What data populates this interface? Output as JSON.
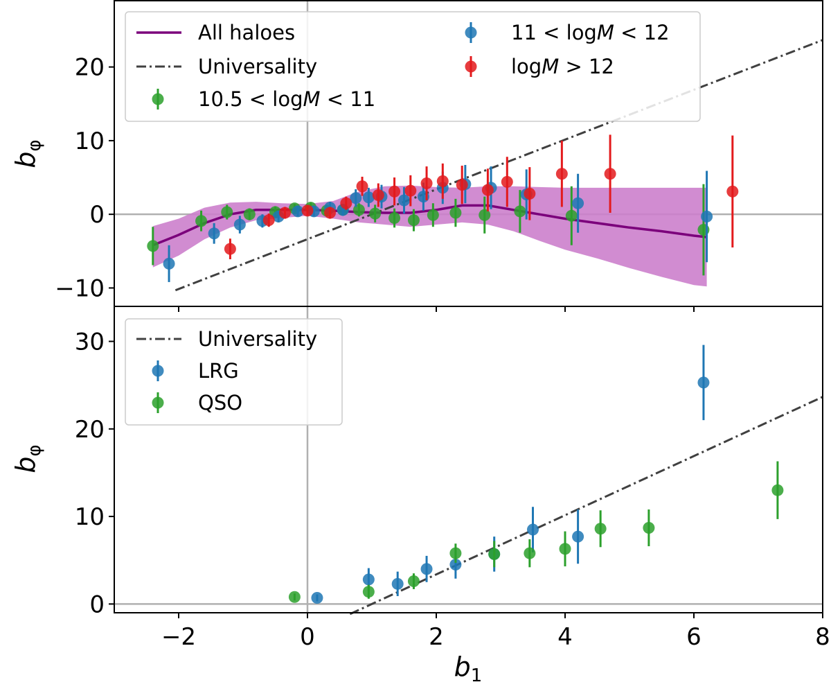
{
  "chart_data": [
    {
      "type": "scatter",
      "panel": "top",
      "xlabel": "b1",
      "ylabel": "bφ",
      "xlim": [
        -3,
        8
      ],
      "ylim": [
        -12.5,
        29
      ],
      "yticks": [
        -10,
        0,
        10,
        20
      ],
      "ytick_labels": [
        "−10",
        "0",
        "10",
        "20"
      ],
      "legend_position": "top-left",
      "reference_lines": {
        "vertical_x": 0,
        "horizontal_y": 0,
        "color": "#b0b0b0"
      },
      "universality": {
        "label": "Universality",
        "slope": 3.38,
        "intercept": -3.38,
        "x_range": [
          -2.05,
          8
        ],
        "color": "#404040"
      },
      "all_haloes": {
        "label": "All haloes",
        "color": "#7b007b",
        "band_color": "#cc80cc",
        "x": [
          -2.4,
          -2.0,
          -1.6,
          -1.2,
          -0.8,
          -0.4,
          0.0,
          0.4,
          0.8,
          1.2,
          1.6,
          2.0,
          2.4,
          2.8,
          3.2,
          3.6,
          4.0,
          4.5,
          5.0,
          5.5,
          6.0,
          6.2
        ],
        "y": [
          -4.2,
          -2.8,
          -1.2,
          0.0,
          0.6,
          0.6,
          0.6,
          0.5,
          0.3,
          0.2,
          0.2,
          0.6,
          1.2,
          1.2,
          0.6,
          0.0,
          -0.6,
          -1.2,
          -1.8,
          -2.3,
          -2.9,
          -3.1
        ],
        "lower": [
          -7.2,
          -5.6,
          -3.4,
          -1.8,
          -0.8,
          -0.5,
          -0.2,
          -0.6,
          -1.1,
          -1.4,
          -1.7,
          -1.4,
          -1.1,
          -1.4,
          -2.3,
          -3.6,
          -4.8,
          -6.0,
          -7.3,
          -8.5,
          -9.6,
          -9.8
        ],
        "upper": [
          -1.6,
          -0.6,
          0.9,
          1.6,
          1.7,
          1.5,
          1.4,
          1.8,
          3.1,
          3.8,
          3.9,
          3.7,
          3.6,
          3.8,
          3.8,
          3.7,
          3.6,
          3.6,
          3.6,
          3.6,
          3.6,
          3.6
        ]
      },
      "series": [
        {
          "name": "10.5 < logM < 11",
          "color": "#2ca02c",
          "x": [
            -2.4,
            -1.65,
            -1.25,
            -0.9,
            -0.5,
            -0.2,
            0.05,
            0.3,
            0.55,
            0.8,
            1.05,
            1.35,
            1.65,
            1.95,
            2.3,
            2.75,
            3.3,
            4.1,
            6.15
          ],
          "y": [
            -4.3,
            -0.9,
            0.3,
            0.0,
            0.3,
            0.8,
            0.9,
            0.5,
            0.6,
            0.6,
            0.1,
            -0.5,
            -0.8,
            -0.1,
            0.2,
            -0.1,
            0.4,
            -0.2,
            -2.1
          ],
          "err": [
            2.6,
            1.4,
            1.0,
            0.8,
            0.8,
            0.6,
            0.7,
            0.8,
            0.7,
            0.9,
            1.2,
            1.3,
            1.5,
            1.6,
            1.9,
            2.5,
            2.9,
            4.0,
            6.2
          ]
        },
        {
          "name": "11 < logM < 12",
          "color": "#1f77b4",
          "x": [
            -2.15,
            -1.45,
            -1.05,
            -0.7,
            -0.45,
            -0.15,
            0.1,
            0.35,
            0.55,
            0.75,
            0.95,
            1.15,
            1.5,
            1.8,
            2.1,
            2.45,
            2.85,
            3.4,
            4.2,
            6.2
          ],
          "y": [
            -6.7,
            -2.6,
            -1.4,
            -0.9,
            -0.3,
            0.4,
            0.4,
            0.9,
            0.6,
            2.2,
            2.3,
            2.4,
            1.9,
            2.4,
            3.6,
            4.1,
            3.6,
            2.7,
            1.5,
            -0.3
          ],
          "err": [
            2.5,
            1.4,
            1.2,
            0.9,
            0.8,
            0.7,
            0.7,
            0.8,
            0.8,
            1.2,
            1.3,
            1.6,
            1.8,
            1.9,
            2.2,
            2.6,
            2.9,
            3.4,
            4.0,
            6.2
          ]
        },
        {
          "name": "logM > 12",
          "color": "#e31a1c",
          "x": [
            -1.2,
            -0.6,
            -0.35,
            0.0,
            0.35,
            0.6,
            0.85,
            1.1,
            1.35,
            1.6,
            1.85,
            2.1,
            2.4,
            2.8,
            3.1,
            3.45,
            3.95,
            4.7,
            6.6
          ],
          "y": [
            -4.7,
            -0.8,
            0.2,
            0.5,
            0.2,
            1.5,
            3.8,
            2.6,
            3.1,
            3.2,
            4.2,
            4.5,
            4.0,
            3.3,
            4.4,
            2.8,
            5.5,
            5.5,
            3.1
          ],
          "err": [
            1.4,
            0.9,
            0.8,
            0.7,
            0.8,
            0.9,
            1.3,
            1.6,
            1.9,
            2.1,
            2.3,
            2.4,
            2.6,
            2.9,
            3.4,
            3.6,
            4.5,
            5.3,
            7.6
          ]
        }
      ]
    },
    {
      "type": "scatter",
      "panel": "bottom",
      "xlabel": "b1",
      "ylabel": "bφ",
      "xlim": [
        -3,
        8
      ],
      "ylim": [
        -1,
        34
      ],
      "yticks": [
        0,
        10,
        20,
        30
      ],
      "ytick_labels": [
        "0",
        "10",
        "20",
        "30"
      ],
      "xticks": [
        -2,
        0,
        2,
        4,
        6,
        8
      ],
      "xtick_labels": [
        "−2",
        "0",
        "2",
        "4",
        "6",
        "8"
      ],
      "legend_position": "top-left",
      "reference_lines": {
        "vertical_x": 0,
        "horizontal_y": 0,
        "color": "#b0b0b0"
      },
      "universality": {
        "label": "Universality",
        "slope": 3.38,
        "intercept": -3.38,
        "x_range": [
          0.66,
          8
        ],
        "color": "#404040"
      },
      "series": [
        {
          "name": "LRG",
          "color": "#1f77b4",
          "x": [
            0.15,
            0.95,
            1.4,
            1.85,
            2.3,
            2.9,
            3.5,
            4.2,
            6.15
          ],
          "y": [
            0.7,
            2.8,
            2.3,
            4.0,
            4.5,
            5.7,
            8.5,
            7.7,
            25.3
          ],
          "err": [
            0.4,
            1.3,
            1.4,
            1.5,
            1.6,
            2.0,
            2.6,
            3.1,
            4.3
          ]
        },
        {
          "name": "QSO",
          "color": "#2ca02c",
          "x": [
            -0.2,
            0.95,
            1.65,
            2.3,
            2.9,
            3.45,
            4.0,
            4.55,
            5.3,
            7.3
          ],
          "y": [
            0.8,
            1.4,
            2.6,
            5.8,
            5.7,
            5.8,
            6.3,
            8.6,
            8.7,
            13.0
          ],
          "err": [
            0.4,
            0.8,
            0.9,
            1.1,
            1.5,
            1.6,
            2.0,
            2.1,
            2.1,
            3.3
          ]
        }
      ]
    }
  ],
  "legends": {
    "top": {
      "all_haloes": "All haloes",
      "universality": "Universality",
      "low_mass_pre": "10.5 < log",
      "low_mass_post": " < 11",
      "mid_mass_pre": "11 < log",
      "mid_mass_post": " < 12",
      "high_mass_pre": "log",
      "high_mass_post": " > 12",
      "mass_var": "M"
    },
    "bottom": {
      "universality": "Universality",
      "lrg": "LRG",
      "qso": "QSO"
    }
  },
  "axis_labels": {
    "y_main": "b",
    "y_sub": "φ",
    "x_main": "b",
    "x_sub": "1"
  }
}
